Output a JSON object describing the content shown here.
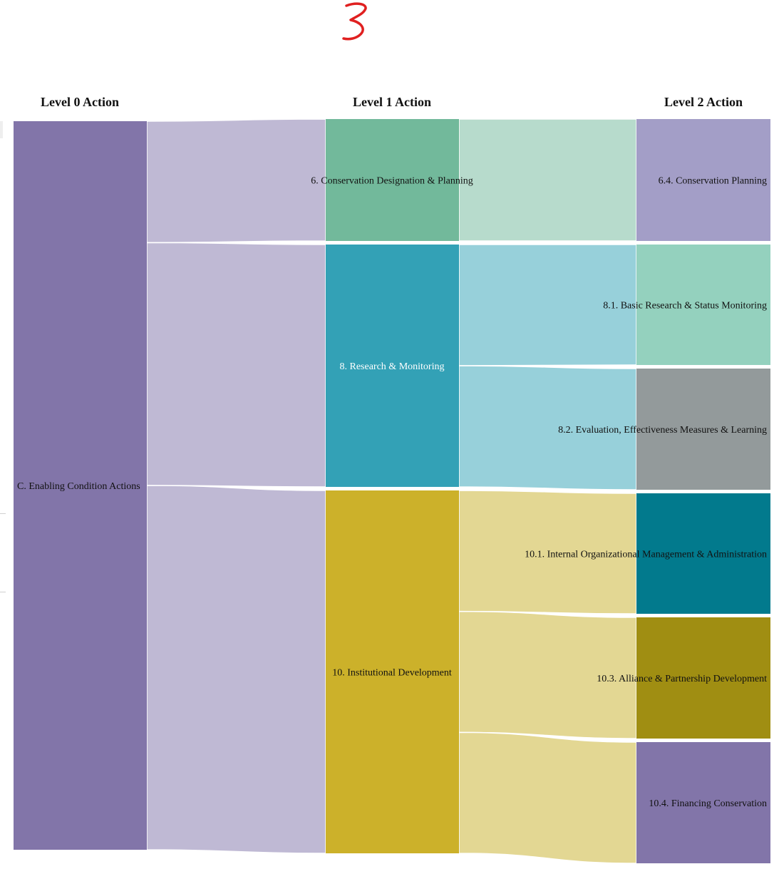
{
  "annotation": {
    "mark": "3",
    "color": "#e02020"
  },
  "columns": [
    {
      "key": "col0",
      "title": "Level 0 Action"
    },
    {
      "key": "col1",
      "title": "Level 1 Action"
    },
    {
      "key": "col2",
      "title": "Level 2 Action"
    }
  ],
  "nodes": {
    "c": {
      "label": "C. Enabling Condition Actions",
      "color": "#8275a9"
    },
    "n6": {
      "label": "6. Conservation Designation & Planning",
      "color": "#72b99b"
    },
    "n8": {
      "label": "8. Research & Monitoring",
      "color": "#33a1b6"
    },
    "n10": {
      "label": "10. Institutional Development",
      "color": "#ccb12a"
    },
    "n6_4": {
      "label": "6.4. Conservation Planning",
      "color": "#a39ec7"
    },
    "n8_1": {
      "label": "8.1. Basic Research & Status Monitoring",
      "color": "#94d1be"
    },
    "n8_2": {
      "label": "8.2. Evaluation, Effectiveness Measures & Learning",
      "color": "#939a9b"
    },
    "n10_1": {
      "label": "10.1. Internal Organizational Management & Administration",
      "color": "#027a8d"
    },
    "n10_3": {
      "label": "10.3. Alliance & Partnership Development",
      "color": "#a08e12"
    },
    "n10_4": {
      "label": "10.4. Financing Conservation",
      "color": "#8275a9"
    }
  },
  "links": [
    {
      "source": "c",
      "target": "n6",
      "value": 1,
      "color": "#bfb9d4"
    },
    {
      "source": "c",
      "target": "n8",
      "value": 2,
      "color": "#bfb9d4"
    },
    {
      "source": "c",
      "target": "n10",
      "value": 3,
      "color": "#bfb9d4"
    },
    {
      "source": "n6",
      "target": "n6_4",
      "value": 1,
      "color": "#b7dbcc"
    },
    {
      "source": "n8",
      "target": "n8_1",
      "value": 1,
      "color": "#97d0da"
    },
    {
      "source": "n8",
      "target": "n8_2",
      "value": 1,
      "color": "#97d0da"
    },
    {
      "source": "n10",
      "target": "n10_1",
      "value": 1,
      "color": "#e3d793"
    },
    {
      "source": "n10",
      "target": "n10_3",
      "value": 1,
      "color": "#e3d793"
    },
    {
      "source": "n10",
      "target": "n10_4",
      "value": 1,
      "color": "#e3d793"
    }
  ]
}
